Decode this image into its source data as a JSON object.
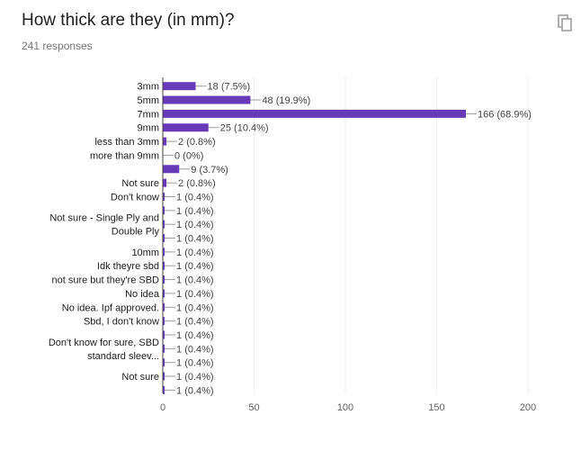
{
  "header": {
    "title": "How thick are they (in mm)?",
    "responses": "241 responses",
    "copy_icon": "copy-icon"
  },
  "chart_data": {
    "type": "bar",
    "orientation": "horizontal",
    "title": "How thick are they (in mm)?",
    "xlim": [
      0,
      200
    ],
    "xticks": [
      0,
      50,
      100,
      150,
      200
    ],
    "grid": true,
    "bar_color": "#673ab7",
    "bars": [
      {
        "label": [
          "3mm"
        ],
        "value": 18,
        "annotation": "18 (7.5%)"
      },
      {
        "label": [
          "5mm"
        ],
        "value": 48,
        "annotation": "48 (19.9%)"
      },
      {
        "label": [
          "7mm"
        ],
        "value": 166,
        "annotation": "166 (68.9%)"
      },
      {
        "label": [
          "9mm"
        ],
        "value": 25,
        "annotation": "25 (10.4%)"
      },
      {
        "label": [
          "less than 3mm"
        ],
        "value": 2,
        "annotation": "2 (0.8%)"
      },
      {
        "label": [
          "more than 9mm"
        ],
        "value": 0,
        "annotation": "0 (0%)"
      },
      {
        "label": [],
        "value": 9,
        "annotation": "9 (3.7%)"
      },
      {
        "label": [
          "Not sure"
        ],
        "value": 2,
        "annotation": "2 (0.8%)"
      },
      {
        "label": [
          "Don't know"
        ],
        "value": 1,
        "annotation": "1 (0.4%)"
      },
      {
        "label": [],
        "value": 1,
        "annotation": "1 (0.4%)"
      },
      {
        "label": [
          "Not sure - Single Ply and",
          "Double Ply"
        ],
        "value": 1,
        "annotation": "1 (0.4%)"
      },
      {
        "label": [],
        "value": 1,
        "annotation": "1 (0.4%)"
      },
      {
        "label": [
          "10mm"
        ],
        "value": 1,
        "annotation": "1 (0.4%)"
      },
      {
        "label": [
          "Idk theyre sbd"
        ],
        "value": 1,
        "annotation": "1 (0.4%)"
      },
      {
        "label": [
          "not sure but they're SBD"
        ],
        "value": 1,
        "annotation": "1 (0.4%)"
      },
      {
        "label": [
          "No idea"
        ],
        "value": 1,
        "annotation": "1 (0.4%)"
      },
      {
        "label": [
          "No idea. Ipf approved."
        ],
        "value": 1,
        "annotation": "1 (0.4%)"
      },
      {
        "label": [
          "Sbd, I don't know"
        ],
        "value": 1,
        "annotation": "1 (0.4%)"
      },
      {
        "label": [],
        "value": 1,
        "annotation": "1 (0.4%)"
      },
      {
        "label": [
          "Don't know for sure, SBD",
          "standard sleev..."
        ],
        "value": 1,
        "annotation": "1 (0.4%)"
      },
      {
        "label": [],
        "value": 1,
        "annotation": "1 (0.4%)"
      },
      {
        "label": [
          "Not sure"
        ],
        "value": 1,
        "annotation": "1 (0.4%)"
      },
      {
        "label": [],
        "value": 1,
        "annotation": "1 (0.4%)"
      }
    ]
  }
}
